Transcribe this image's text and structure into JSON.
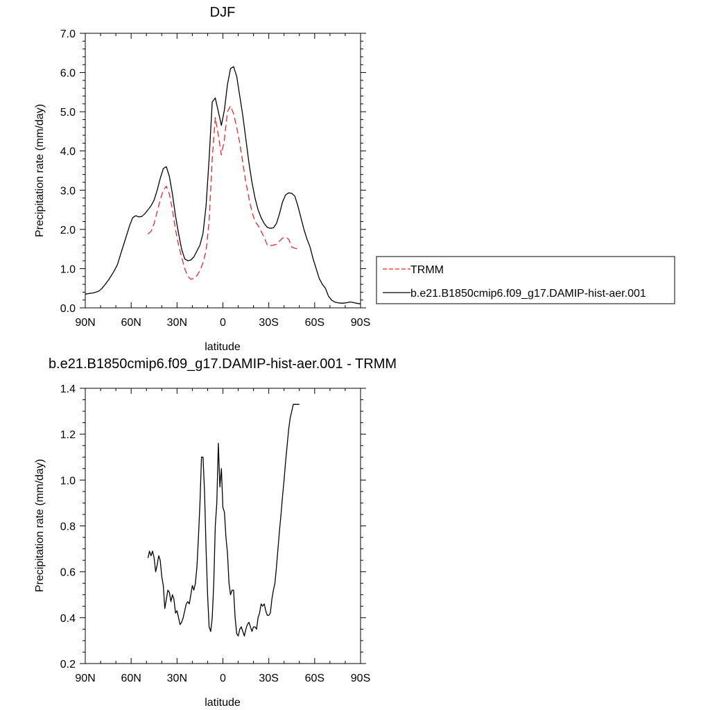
{
  "chart_data": [
    {
      "type": "line",
      "title": "DJF",
      "xlabel": "latitude",
      "ylabel": "Precipitation rate (mm/day)",
      "xlim": [
        90,
        -90
      ],
      "ylim": [
        0,
        7
      ],
      "x_ticks": [
        90,
        60,
        30,
        0,
        -30,
        -60,
        -90
      ],
      "x_tick_labels": [
        "90N",
        "60N",
        "30N",
        "0",
        "30S",
        "60S",
        "90S"
      ],
      "y_ticks": [
        0,
        1,
        2,
        3,
        4,
        5,
        6,
        7
      ],
      "y_tick_labels": [
        "0.0",
        "1.0",
        "2.0",
        "3.0",
        "4.0",
        "5.0",
        "6.0",
        "7.0"
      ],
      "legend_position": "right",
      "series": [
        {
          "name": "TRMM",
          "color": "#e8242a",
          "dash": "dashed",
          "x": [
            49,
            47,
            45,
            43,
            41,
            39,
            37,
            35,
            33,
            31,
            29,
            27,
            25,
            23,
            21,
            19,
            17,
            15,
            13,
            11,
            9,
            7,
            5,
            3,
            1,
            -1,
            -3,
            -5,
            -7,
            -9,
            -11,
            -13,
            -15,
            -17,
            -19,
            -21,
            -23,
            -25,
            -27,
            -29,
            -31,
            -33,
            -35,
            -37,
            -39,
            -41,
            -43,
            -45,
            -47,
            -49
          ],
          "y": [
            1.88,
            1.95,
            2.15,
            2.45,
            2.75,
            3.0,
            3.1,
            2.9,
            2.5,
            2.0,
            1.6,
            1.3,
            1.0,
            0.8,
            0.73,
            0.75,
            0.82,
            0.95,
            1.15,
            1.45,
            2.2,
            3.8,
            4.85,
            4.4,
            3.9,
            4.3,
            5.0,
            5.15,
            4.95,
            4.6,
            4.2,
            3.7,
            3.2,
            2.8,
            2.45,
            2.2,
            2.1,
            1.95,
            1.8,
            1.6,
            1.58,
            1.6,
            1.62,
            1.7,
            1.78,
            1.8,
            1.75,
            1.55,
            1.52,
            1.5
          ]
        },
        {
          "name": "b.e21.B1850cmip6.f09_g17.DAMIP-hist-aer.001",
          "color": "#000000",
          "dash": "solid",
          "x": [
            90,
            87,
            85,
            83,
            81,
            79,
            77,
            75,
            73,
            71,
            69,
            67,
            65,
            63,
            61,
            59,
            57,
            55,
            53,
            51,
            49,
            47,
            45,
            43,
            41,
            39,
            37,
            35,
            33,
            31,
            29,
            27,
            25,
            23,
            21,
            19,
            17,
            15,
            13,
            11,
            9,
            7,
            5,
            3,
            1,
            -1,
            -3,
            -5,
            -7,
            -9,
            -11,
            -13,
            -15,
            -17,
            -19,
            -21,
            -23,
            -25,
            -27,
            -29,
            -31,
            -33,
            -35,
            -37,
            -39,
            -41,
            -43,
            -45,
            -47,
            -49,
            -51,
            -53,
            -55,
            -57,
            -59,
            -61,
            -63,
            -65,
            -67,
            -69,
            -71,
            -73,
            -75,
            -77,
            -79,
            -81,
            -83,
            -85,
            -87,
            -90
          ],
          "y": [
            0.35,
            0.37,
            0.38,
            0.4,
            0.43,
            0.5,
            0.6,
            0.7,
            0.82,
            0.95,
            1.1,
            1.35,
            1.6,
            1.85,
            2.1,
            2.3,
            2.35,
            2.32,
            2.33,
            2.4,
            2.5,
            2.6,
            2.75,
            3.0,
            3.3,
            3.55,
            3.6,
            3.35,
            2.9,
            2.35,
            1.9,
            1.5,
            1.25,
            1.2,
            1.22,
            1.3,
            1.45,
            1.6,
            1.9,
            2.6,
            3.8,
            5.25,
            5.35,
            5.0,
            4.65,
            5.05,
            5.7,
            6.1,
            6.15,
            5.9,
            5.4,
            4.9,
            4.3,
            3.7,
            3.2,
            2.8,
            2.5,
            2.3,
            2.15,
            2.05,
            2.03,
            2.04,
            2.15,
            2.4,
            2.7,
            2.88,
            2.93,
            2.92,
            2.85,
            2.6,
            2.3,
            2.0,
            1.75,
            1.55,
            1.25,
            1.0,
            0.75,
            0.6,
            0.5,
            0.3,
            0.2,
            0.15,
            0.13,
            0.12,
            0.12,
            0.13,
            0.15,
            0.14,
            0.12,
            0.1
          ]
        }
      ]
    },
    {
      "type": "line",
      "title": "b.e21.B1850cmip6.f09_g17.DAMIP-hist-aer.001 - TRMM",
      "xlabel": "latitude",
      "ylabel": "Precipitation rate (mm/day)",
      "xlim": [
        90,
        -90
      ],
      "ylim": [
        0.2,
        1.4
      ],
      "x_ticks": [
        90,
        60,
        30,
        0,
        -30,
        -60,
        -90
      ],
      "x_tick_labels": [
        "90N",
        "60N",
        "30N",
        "0",
        "30S",
        "60S",
        "90S"
      ],
      "y_ticks": [
        0.2,
        0.4,
        0.6,
        0.8,
        1.0,
        1.2,
        1.4
      ],
      "y_tick_labels": [
        "0.2",
        "0.4",
        "0.6",
        "0.8",
        "1.0",
        "1.2",
        "1.4"
      ],
      "series": [
        {
          "color": "#000000",
          "dash": "solid",
          "x": [
            49,
            48,
            47,
            46,
            45,
            44,
            43,
            42,
            41,
            40,
            39,
            38,
            37,
            36,
            35,
            34,
            33,
            32,
            31,
            30,
            29,
            28,
            27,
            26,
            25,
            24,
            23,
            22,
            21,
            20,
            19,
            18,
            17,
            16,
            15,
            14,
            13,
            12,
            11,
            10,
            9,
            8,
            7,
            6,
            5,
            4,
            3,
            2,
            1,
            0,
            -1,
            -2,
            -3,
            -4,
            -5,
            -6,
            -7,
            -8,
            -9,
            -10,
            -11,
            -12,
            -13,
            -14,
            -15,
            -16,
            -17,
            -18,
            -19,
            -20,
            -21,
            -22,
            -23,
            -24,
            -25,
            -26,
            -27,
            -28,
            -29,
            -30,
            -31,
            -32,
            -33,
            -34,
            -35,
            -36,
            -37,
            -38,
            -39,
            -40,
            -41,
            -42,
            -43,
            -44,
            -45,
            -46,
            -47,
            -48,
            -49,
            -50
          ],
          "y": [
            0.66,
            0.69,
            0.67,
            0.69,
            0.66,
            0.6,
            0.63,
            0.67,
            0.65,
            0.58,
            0.54,
            0.44,
            0.48,
            0.52,
            0.51,
            0.47,
            0.5,
            0.48,
            0.42,
            0.43,
            0.4,
            0.37,
            0.38,
            0.4,
            0.43,
            0.46,
            0.47,
            0.46,
            0.5,
            0.54,
            0.52,
            0.55,
            0.62,
            0.75,
            0.9,
            1.1,
            1.1,
            0.95,
            0.7,
            0.5,
            0.36,
            0.34,
            0.4,
            0.55,
            0.8,
            0.9,
            1.16,
            0.97,
            1.05,
            0.88,
            0.86,
            0.75,
            0.68,
            0.55,
            0.5,
            0.52,
            0.52,
            0.4,
            0.33,
            0.32,
            0.35,
            0.36,
            0.34,
            0.32,
            0.35,
            0.37,
            0.38,
            0.36,
            0.34,
            0.36,
            0.36,
            0.35,
            0.4,
            0.42,
            0.46,
            0.45,
            0.46,
            0.43,
            0.41,
            0.41,
            0.42,
            0.48,
            0.52,
            0.55,
            0.62,
            0.7,
            0.78,
            0.85,
            0.93,
            1.0,
            1.08,
            1.15,
            1.22,
            1.27,
            1.3,
            1.33,
            1.33,
            1.33,
            1.33,
            1.33
          ]
        }
      ]
    }
  ]
}
